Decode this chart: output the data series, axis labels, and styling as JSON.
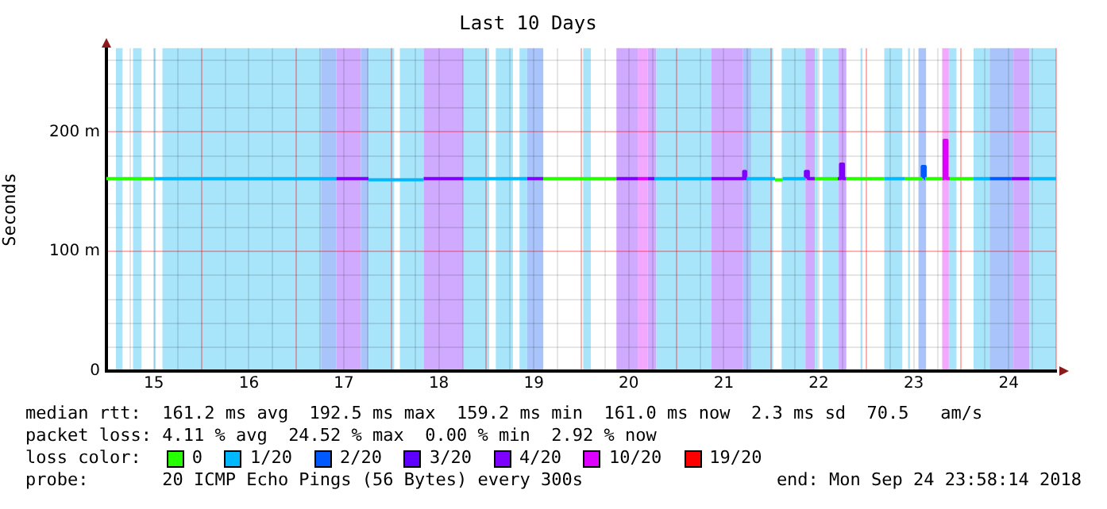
{
  "chart_data": {
    "type": "line",
    "title": "Last 10 Days",
    "ylabel": "Seconds",
    "legend_title": "loss color:",
    "legend": "bottom",
    "marker": "none",
    "line_style": "solid",
    "grid": true,
    "xlim": [
      14.5,
      24.5
    ],
    "ylim": [
      0,
      270
    ],
    "xticks": [
      {
        "value": 14.75,
        "label": null
      },
      15,
      {
        "value": 15.25,
        "label": null
      },
      {
        "value": 15.5,
        "label": null
      },
      {
        "value": 15.75,
        "label": null
      },
      16,
      {
        "value": 16.25,
        "label": null
      },
      {
        "value": 16.5,
        "label": null
      },
      {
        "value": 16.75,
        "label": null
      },
      17,
      {
        "value": 17.25,
        "label": null
      },
      {
        "value": 17.5,
        "label": null
      },
      {
        "value": 17.75,
        "label": null
      },
      18,
      {
        "value": 18.25,
        "label": null
      },
      {
        "value": 18.5,
        "label": null
      },
      {
        "value": 18.75,
        "label": null
      },
      19,
      {
        "value": 19.25,
        "label": null
      },
      {
        "value": 19.5,
        "label": null
      },
      {
        "value": 19.75,
        "label": null
      },
      20,
      {
        "value": 20.25,
        "label": null
      },
      {
        "value": 20.5,
        "label": null
      },
      {
        "value": 20.75,
        "label": null
      },
      21,
      {
        "value": 21.25,
        "label": null
      },
      {
        "value": 21.5,
        "label": null
      },
      {
        "value": 21.75,
        "label": null
      },
      22,
      {
        "value": 22.25,
        "label": null
      },
      {
        "value": 22.5,
        "label": null
      },
      {
        "value": 22.75,
        "label": null
      },
      23,
      {
        "value": 23.25,
        "label": null
      },
      {
        "value": 23.5,
        "label": null
      },
      {
        "value": 23.75,
        "label": null
      },
      24,
      {
        "value": 24.25,
        "label": null
      },
      {
        "value": 24.5,
        "label": null
      }
    ],
    "yticks": [
      0,
      {
        "value": 20,
        "label": null
      },
      {
        "value": 40,
        "label": null
      },
      {
        "value": 60,
        "label": null
      },
      {
        "value": 80,
        "label": null
      },
      {
        "value": 100,
        "label": "100 m"
      },
      {
        "value": 120,
        "label": null
      },
      {
        "value": 140,
        "label": null
      },
      {
        "value": 160,
        "label": null
      },
      {
        "value": 180,
        "label": null
      },
      {
        "value": 200,
        "label": "200 m"
      },
      {
        "value": 220,
        "label": null
      },
      {
        "value": 240,
        "label": null
      },
      {
        "value": 260,
        "label": null
      }
    ],
    "series": [
      {
        "name": "0",
        "color": "#26ff00",
        "x": [
          14.5,
          15.0,
          null,
          19.1,
          19.87,
          null,
          21.54,
          21.62,
          null,
          21.96,
          22.2,
          null,
          22.29,
          22.69,
          null,
          22.91,
          23.09,
          null,
          23.12,
          23.3,
          null,
          23.38,
          23.63
        ],
        "values": [
          161,
          161,
          null,
          161,
          161,
          null,
          160,
          160,
          null,
          161,
          161,
          null,
          161,
          161,
          null,
          161,
          161,
          null,
          161,
          161,
          null,
          161,
          161
        ]
      },
      {
        "name": "1/20",
        "color": "#00b8ff",
        "x": [
          15.0,
          16.92,
          null,
          17.26,
          17.84,
          null,
          18.26,
          18.93,
          null,
          20.27,
          20.87,
          null,
          21.24,
          21.54,
          null,
          21.62,
          21.86,
          null,
          22.69,
          22.91,
          null,
          23.63,
          23.8,
          null,
          24.22,
          24.5
        ],
        "values": [
          161,
          161,
          null,
          160,
          160,
          null,
          161,
          161,
          null,
          161,
          161,
          null,
          161,
          161,
          null,
          161,
          161,
          null,
          161,
          161,
          null,
          161,
          161,
          null,
          161,
          161
        ]
      },
      {
        "name": "2/20",
        "color": "#0059ff",
        "x": [
          23.09,
          23.09,
          23.12,
          23.12,
          null,
          23.8,
          24.03
        ],
        "values": [
          161,
          171,
          171,
          161,
          null,
          161,
          161
        ]
      },
      {
        "name": "3/20",
        "color": "#5e00ff"
      },
      {
        "name": "4/20",
        "color": "#7e00ff",
        "x": [
          16.92,
          17.26,
          null,
          17.84,
          18.26,
          null,
          18.93,
          19.1,
          null,
          19.87,
          20.1,
          null,
          20.2,
          20.27,
          null,
          20.87,
          21.21,
          21.21,
          21.23,
          21.23,
          21.24,
          null,
          21.86,
          21.86,
          21.89,
          21.89,
          21.96,
          null,
          22.2,
          22.23,
          22.23,
          22.26,
          22.26,
          22.29,
          null,
          24.03,
          24.22
        ],
        "values": [
          161,
          161,
          null,
          161,
          161,
          null,
          161,
          161,
          null,
          161,
          161,
          null,
          161,
          161,
          null,
          161,
          161,
          167,
          167,
          161,
          161,
          null,
          161,
          167,
          167,
          161,
          161,
          null,
          161,
          161,
          173,
          173,
          161,
          161,
          null,
          161,
          161
        ]
      },
      {
        "name": "10/20",
        "color": "#dd00ff",
        "x": [
          20.1,
          20.2,
          null,
          23.3,
          23.32,
          23.32,
          23.35,
          23.35,
          23.38
        ],
        "values": [
          161,
          161,
          null,
          161,
          161,
          193,
          193,
          161,
          161
        ]
      },
      {
        "name": "19/20",
        "color": "#ff0000"
      }
    ],
    "bands": [
      {
        "axis": "x",
        "from": 14.6,
        "to": 14.67,
        "color": "#a8e4fa"
      },
      {
        "axis": "x",
        "from": 14.78,
        "to": 14.87,
        "color": "#a8e4fa"
      },
      {
        "axis": "x",
        "from": 15.0,
        "to": 15.02,
        "color": "#a8e4fa"
      },
      {
        "axis": "x",
        "from": 15.09,
        "to": 16.76,
        "color": "#a8e4fa"
      },
      {
        "axis": "x",
        "from": 16.76,
        "to": 16.92,
        "color": "#a8c4fa"
      },
      {
        "axis": "x",
        "from": 16.92,
        "to": 17.18,
        "color": "#cfaaff"
      },
      {
        "axis": "x",
        "from": 17.18,
        "to": 17.26,
        "color": "#a8c4fa"
      },
      {
        "axis": "x",
        "from": 17.26,
        "to": 17.53,
        "color": "#a8e4fa"
      },
      {
        "axis": "x",
        "from": 17.59,
        "to": 17.84,
        "color": "#a8e4fa"
      },
      {
        "axis": "x",
        "from": 17.84,
        "to": 18.26,
        "color": "#cfaaff"
      },
      {
        "axis": "x",
        "from": 18.26,
        "to": 18.53,
        "color": "#a8e4fa"
      },
      {
        "axis": "x",
        "from": 18.6,
        "to": 18.78,
        "color": "#a8e4fa"
      },
      {
        "axis": "x",
        "from": 18.85,
        "to": 18.93,
        "color": "#a8e4fa"
      },
      {
        "axis": "x",
        "from": 18.93,
        "to": 19.1,
        "color": "#a8c4fa"
      },
      {
        "axis": "x",
        "from": 19.52,
        "to": 19.6,
        "color": "#a8e4fa"
      },
      {
        "axis": "x",
        "from": 19.87,
        "to": 20.1,
        "color": "#cfaaff"
      },
      {
        "axis": "x",
        "from": 20.1,
        "to": 20.2,
        "color": "#f2a8ff"
      },
      {
        "axis": "x",
        "from": 20.2,
        "to": 20.29,
        "color": "#cfaaff"
      },
      {
        "axis": "x",
        "from": 20.29,
        "to": 20.87,
        "color": "#a8e4fa"
      },
      {
        "axis": "x",
        "from": 20.87,
        "to": 21.2,
        "color": "#cfaaff"
      },
      {
        "axis": "x",
        "from": 21.2,
        "to": 21.29,
        "color": "#a8c4fa"
      },
      {
        "axis": "x",
        "from": 21.29,
        "to": 21.52,
        "color": "#a8e4fa"
      },
      {
        "axis": "x",
        "from": 21.61,
        "to": 21.86,
        "color": "#a8e4fa"
      },
      {
        "axis": "x",
        "from": 21.86,
        "to": 21.96,
        "color": "#cfaaff"
      },
      {
        "axis": "x",
        "from": 21.96,
        "to": 21.99,
        "color": "#a8e4fa"
      },
      {
        "axis": "x",
        "from": 22.04,
        "to": 22.21,
        "color": "#a8e4fa"
      },
      {
        "axis": "x",
        "from": 22.21,
        "to": 22.29,
        "color": "#cfaaff"
      },
      {
        "axis": "x",
        "from": 22.44,
        "to": 22.46,
        "color": "#a8e4fa"
      },
      {
        "axis": "x",
        "from": 22.69,
        "to": 22.88,
        "color": "#a8e4fa"
      },
      {
        "axis": "x",
        "from": 22.94,
        "to": 22.96,
        "color": "#a8e4fa"
      },
      {
        "axis": "x",
        "from": 23.05,
        "to": 23.13,
        "color": "#a8c4fa"
      },
      {
        "axis": "x",
        "from": 23.3,
        "to": 23.37,
        "color": "#f2a8ff"
      },
      {
        "axis": "x",
        "from": 23.37,
        "to": 23.45,
        "color": "#a8e4fa"
      },
      {
        "axis": "x",
        "from": 23.63,
        "to": 23.8,
        "color": "#a8e4fa"
      },
      {
        "axis": "x",
        "from": 23.8,
        "to": 24.05,
        "color": "#a8c4fa"
      },
      {
        "axis": "x",
        "from": 24.05,
        "to": 24.22,
        "color": "#cfaaff"
      },
      {
        "axis": "x",
        "from": 24.22,
        "to": 24.5,
        "color": "#a8e4fa"
      }
    ],
    "annotations": [
      "median rtt:  161.2 ms avg  192.5 ms max  159.2 ms min  161.0 ms now  2.3 ms sd  70.5   am/s",
      "packet loss: 4.11 % avg  24.52 % max  0.00 % min  2.92 % now",
      "probe:       20 ICMP Echo Pings (56 Bytes) every 300s",
      "end: Mon Sep 24 23:58:14 2018"
    ]
  }
}
